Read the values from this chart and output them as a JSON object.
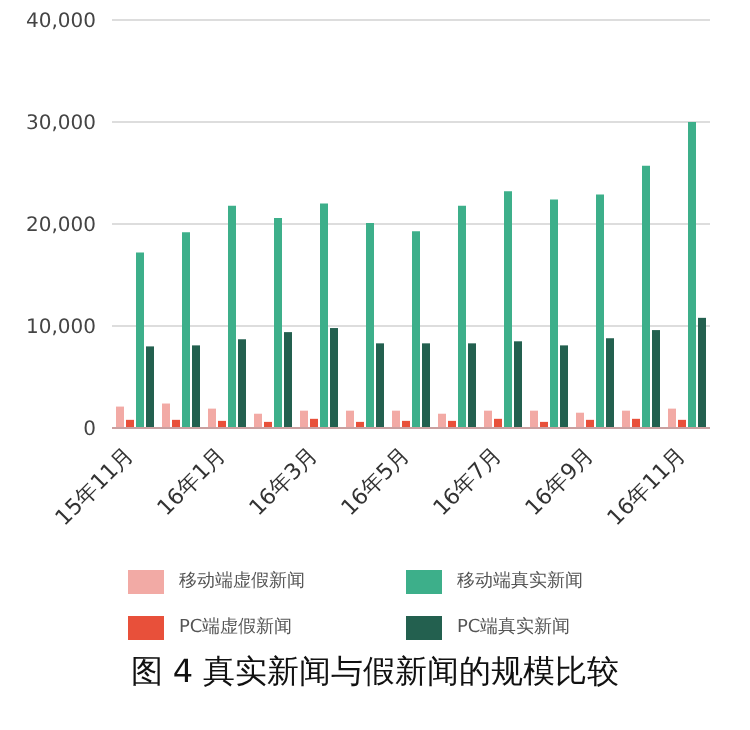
{
  "chart_data": {
    "type": "bar",
    "title": "图 4 真实新闻与假新闻的规模比较",
    "categories": [
      "15年11月",
      null,
      "16年1月",
      null,
      "16年3月",
      null,
      "16年5月",
      null,
      "16年7月",
      null,
      "16年9月",
      null,
      "16年11月"
    ],
    "series": [
      {
        "name": "移动端虚假新闻",
        "color": "#f2aaa5",
        "values": [
          2100,
          2400,
          1900,
          1400,
          1700,
          1700,
          1700,
          1400,
          1700,
          1700,
          1500,
          1700,
          1900
        ]
      },
      {
        "name": "PC端虚假新闻",
        "color": "#e8503a",
        "values": [
          800,
          800,
          700,
          600,
          900,
          600,
          700,
          700,
          900,
          600,
          800,
          900,
          800
        ]
      },
      {
        "name": "移动端真实新闻",
        "color": "#3daf8a",
        "values": [
          17200,
          19200,
          21800,
          20600,
          22000,
          20100,
          19300,
          21800,
          23200,
          22400,
          22900,
          25700,
          30000
        ]
      },
      {
        "name": "PC端真实新闻",
        "color": "#23604f",
        "values": [
          8000,
          8100,
          8700,
          9400,
          9800,
          8300,
          8300,
          8300,
          8500,
          8100,
          8800,
          9600,
          10800
        ]
      }
    ],
    "ylim": [
      0,
      40000
    ],
    "yticks": [
      {
        "value": 0,
        "label": "0"
      },
      {
        "value": 10000,
        "label": "10,000"
      },
      {
        "value": 20000,
        "label": "20,000"
      },
      {
        "value": 30000,
        "label": "30,000"
      },
      {
        "value": 40000,
        "label": "40,000"
      }
    ],
    "grid": "y",
    "legend": "bottom"
  }
}
